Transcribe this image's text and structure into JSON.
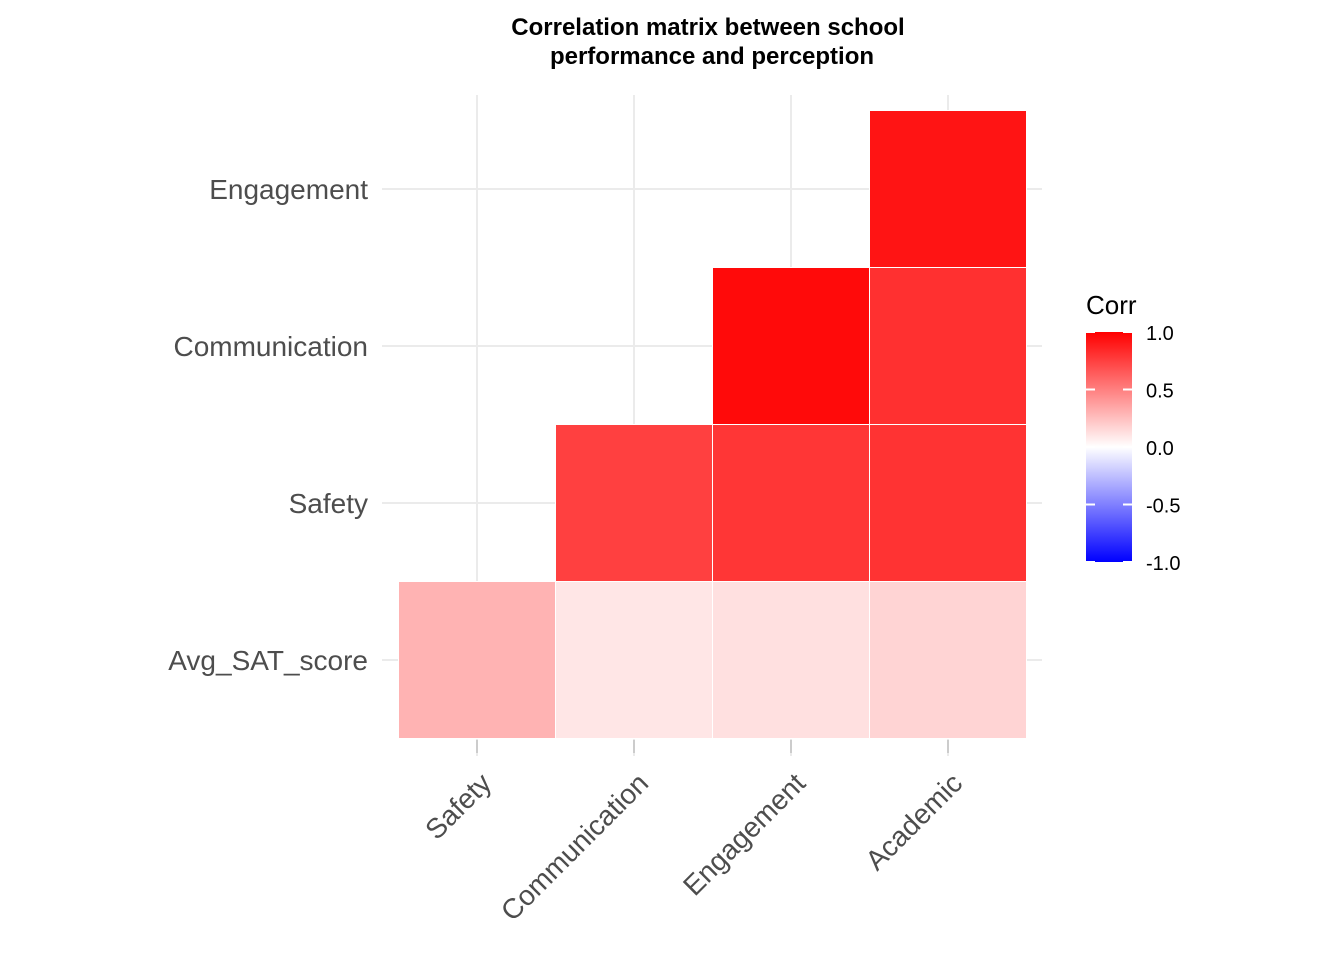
{
  "chart_data": {
    "type": "heatmap",
    "title": [
      "Correlation matrix between school",
      "performance and perception"
    ],
    "x_categories": [
      "Safety",
      "Communication",
      "Engagement",
      "Academic"
    ],
    "y_categories": [
      "Avg_SAT_score",
      "Safety",
      "Communication",
      "Engagement"
    ],
    "cells": [
      {
        "x": "Safety",
        "y": "Avg_SAT_score",
        "value": 0.3
      },
      {
        "x": "Communication",
        "y": "Avg_SAT_score",
        "value": 0.1
      },
      {
        "x": "Engagement",
        "y": "Avg_SAT_score",
        "value": 0.12
      },
      {
        "x": "Academic",
        "y": "Avg_SAT_score",
        "value": 0.17
      },
      {
        "x": "Communication",
        "y": "Safety",
        "value": 0.75
      },
      {
        "x": "Engagement",
        "y": "Safety",
        "value": 0.79
      },
      {
        "x": "Academic",
        "y": "Safety",
        "value": 0.8
      },
      {
        "x": "Engagement",
        "y": "Communication",
        "value": 0.96
      },
      {
        "x": "Academic",
        "y": "Communication",
        "value": 0.81
      },
      {
        "x": "Academic",
        "y": "Engagement",
        "value": 0.92
      }
    ],
    "legend": {
      "title": "Corr",
      "range": [
        -1,
        1
      ],
      "ticks": [
        1.0,
        0.5,
        0.0,
        -0.5,
        -1.0
      ],
      "tick_labels": [
        "1.0",
        "0.5",
        "0.0",
        "-0.5",
        "-1.0"
      ],
      "colors": {
        "low": "#0000ff",
        "mid": "#ffffff",
        "high": "#ff0000"
      }
    },
    "grid": true,
    "x_tick_rotation": "45 degrees"
  }
}
